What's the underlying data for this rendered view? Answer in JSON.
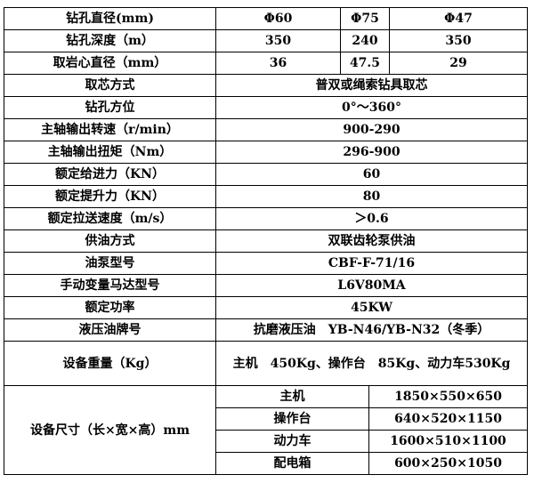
{
  "rows": [
    {
      "label": "钻孔直径(mm)",
      "values": [
        "Φ60",
        "Φ75",
        "Φ47"
      ]
    },
    {
      "label": "钻孔深度（m）",
      "values": [
        "350",
        "240",
        "350"
      ]
    },
    {
      "label": "取岩心直径（mm）",
      "values": [
        "36",
        "47.5",
        "29"
      ]
    },
    {
      "label": "取芯方式",
      "value": "普双或绳索钻具取芯"
    },
    {
      "label": "钻孔方位",
      "value": "0°～360°"
    },
    {
      "label": "主轴输出转速（r/min）",
      "value": "900-290"
    },
    {
      "label": "主轴输出扭矩（Nm）",
      "value": "296-900"
    },
    {
      "label": "额定给进力（KN）",
      "value": "60"
    },
    {
      "label": "额定提升力（KN）",
      "value": "80"
    },
    {
      "label": "额定拉送速度（m/s）",
      "value": "＞0.6"
    },
    {
      "label": "供油方式",
      "value": "双联齿轮泵供油"
    },
    {
      "label": "油泵型号",
      "value": "CBF-F-71/16"
    },
    {
      "label": "手动变量马达型号",
      "value": "L6V80MA"
    },
    {
      "label": "额定功率",
      "value": "45KW"
    },
    {
      "label": "液压油牌号",
      "value": "抗磨液压油　YB-N46/YB-N32（冬季）"
    },
    {
      "label": "设备重量（Kg）",
      "value": "主机　450Kg、操作台　85Kg、动力车530Kg"
    }
  ],
  "dimensions": {
    "label": "设备尺寸（长×宽×高）mm",
    "items": [
      {
        "name": "主机",
        "size": "1850×550×650"
      },
      {
        "name": "操作台",
        "size": "640×520×1150"
      },
      {
        "name": "动力车",
        "size": "1600×510×1100"
      },
      {
        "name": "配电箱",
        "size": "600×250×1050"
      }
    ]
  }
}
